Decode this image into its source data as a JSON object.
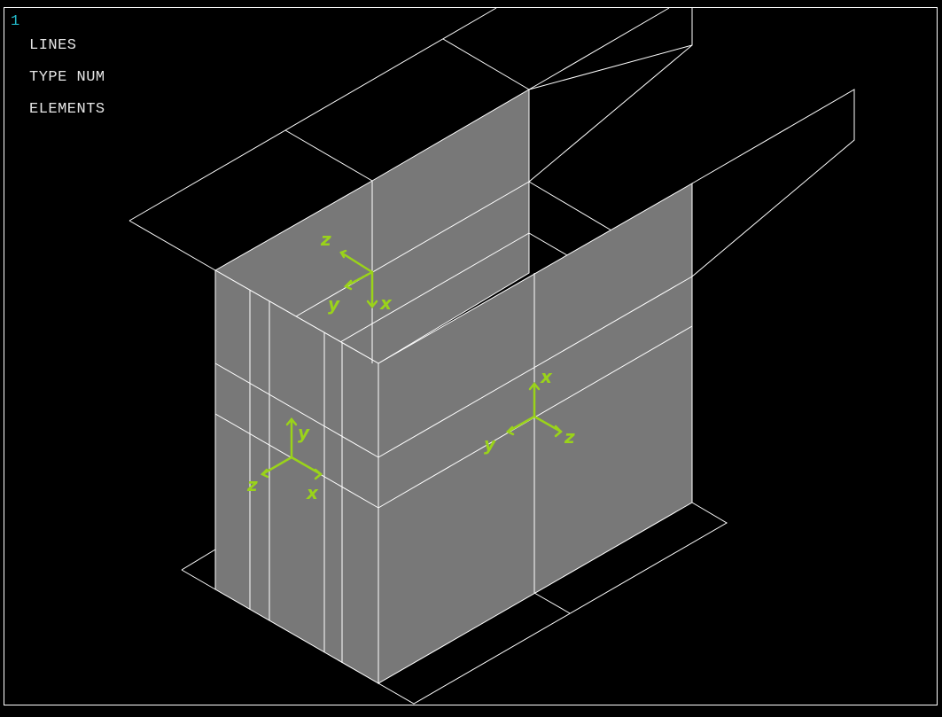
{
  "window_number": "1",
  "legend": [
    "LINES",
    "TYPE NUM",
    "ELEMENTS"
  ],
  "triads": [
    {
      "axes": [
        "z",
        "y",
        "x"
      ]
    },
    {
      "axes": [
        "y",
        "z",
        "x"
      ]
    },
    {
      "axes": [
        "x",
        "y",
        "z"
      ]
    }
  ],
  "colors": {
    "background": "#000000",
    "frame": "#ffffff",
    "lines": "#ffffff",
    "element_fill": "#787878",
    "window_number": "#22b8c8",
    "annotation": "#9ad31a"
  }
}
